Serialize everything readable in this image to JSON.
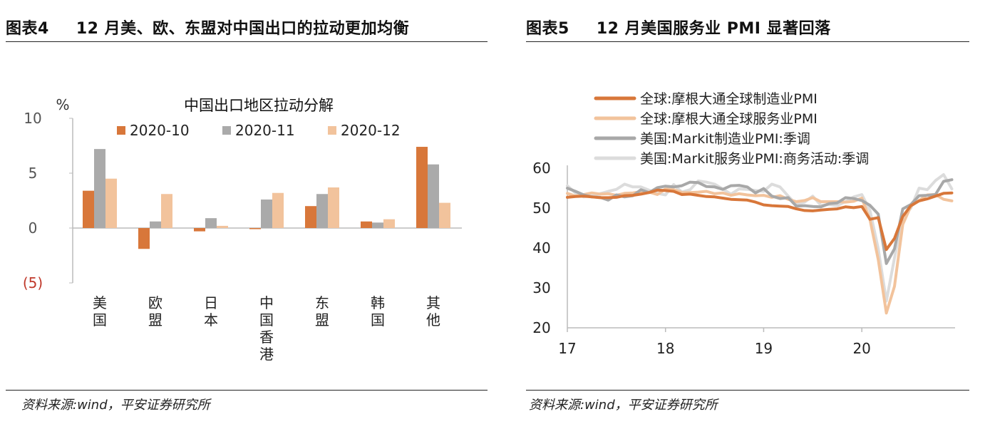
{
  "left": {
    "figure_no": "图表4",
    "title": "12 月美、欧、东盟对中国出口的拉动更加均衡",
    "source": "资料来源:wind，平安证券研究所"
  },
  "right": {
    "figure_no": "图表5",
    "title": "12 月美国服务业 PMI 显著回落",
    "source": "资料来源:wind，平安证券研究所"
  },
  "colors": {
    "dark_orange": "#D8773A",
    "gray": "#AAAAAA",
    "light_peach": "#F2C39C",
    "neg_tick_red": "#C0392B",
    "pmi_mfg_global": "#D8773A",
    "pmi_srv_global": "#F2C39C",
    "pmi_mfg_us": "#A8A8A8",
    "pmi_srv_us": "#DCDCDC"
  },
  "chart_data": [
    {
      "type": "bar",
      "title": "中国出口地区拉动分解",
      "ylabel": "%",
      "ylim": [
        -5,
        10
      ],
      "yticks": [
        "10",
        "5",
        "0",
        "(5)"
      ],
      "categories": [
        "美国",
        "欧盟",
        "日本",
        "中国香港",
        "东盟",
        "韩国",
        "其他"
      ],
      "legend_position": "top",
      "series": [
        {
          "name": "2020-10",
          "color": "#D8773A",
          "values": [
            3.4,
            -1.9,
            -0.3,
            -0.1,
            2.0,
            0.6,
            7.4
          ]
        },
        {
          "name": "2020-11",
          "color": "#AAAAAA",
          "values": [
            7.2,
            0.6,
            0.9,
            2.6,
            3.1,
            0.5,
            5.8
          ]
        },
        {
          "name": "2020-12",
          "color": "#F2C39C",
          "values": [
            4.5,
            3.1,
            0.2,
            3.2,
            3.7,
            0.8,
            2.3
          ]
        }
      ]
    },
    {
      "type": "line",
      "ylim": [
        20,
        60
      ],
      "yticks": [
        20,
        30,
        40,
        50,
        60
      ],
      "xlim": [
        2017.0,
        2020.95
      ],
      "xticks": [
        "17",
        "18",
        "19",
        "20"
      ],
      "legend_position": "top-left",
      "series": [
        {
          "name": "全球:摩根大通全球制造业PMI",
          "color": "#D8773A",
          "x": [
            2017.0,
            2017.083,
            2017.167,
            2017.25,
            2017.333,
            2017.417,
            2017.5,
            2017.583,
            2017.667,
            2017.75,
            2017.833,
            2017.917,
            2018.0,
            2018.083,
            2018.167,
            2018.25,
            2018.333,
            2018.417,
            2018.5,
            2018.583,
            2018.667,
            2018.75,
            2018.833,
            2018.917,
            2019.0,
            2019.083,
            2019.167,
            2019.25,
            2019.333,
            2019.417,
            2019.5,
            2019.583,
            2019.667,
            2019.75,
            2019.833,
            2019.917,
            2020.0,
            2020.083,
            2020.167,
            2020.25,
            2020.333,
            2020.417,
            2020.5,
            2020.583,
            2020.667,
            2020.75,
            2020.833,
            2020.917
          ],
          "values": [
            52.7,
            52.9,
            53.0,
            52.8,
            52.6,
            52.6,
            52.7,
            53.1,
            53.2,
            53.5,
            53.9,
            54.5,
            54.4,
            54.2,
            53.4,
            53.5,
            53.2,
            52.9,
            52.8,
            52.5,
            52.2,
            52.1,
            52.0,
            51.5,
            50.8,
            50.6,
            50.5,
            50.4,
            49.8,
            49.4,
            49.3,
            49.5,
            49.7,
            49.8,
            50.3,
            50.1,
            50.4,
            47.2,
            47.6,
            39.6,
            42.4,
            47.9,
            50.6,
            51.8,
            52.3,
            53.0,
            53.7,
            53.8
          ]
        },
        {
          "name": "全球:摩根大通全球服务业PMI",
          "color": "#F2C39C",
          "x": [
            2017.0,
            2017.083,
            2017.167,
            2017.25,
            2017.333,
            2017.417,
            2017.5,
            2017.583,
            2017.667,
            2017.75,
            2017.833,
            2017.917,
            2018.0,
            2018.083,
            2018.167,
            2018.25,
            2018.333,
            2018.417,
            2018.5,
            2018.583,
            2018.667,
            2018.75,
            2018.833,
            2018.917,
            2019.0,
            2019.083,
            2019.167,
            2019.25,
            2019.333,
            2019.417,
            2019.5,
            2019.583,
            2019.667,
            2019.75,
            2019.833,
            2019.917,
            2020.0,
            2020.083,
            2020.167,
            2020.25,
            2020.333,
            2020.417,
            2020.5,
            2020.583,
            2020.667,
            2020.75,
            2020.833,
            2020.917
          ],
          "values": [
            53.7,
            53.0,
            53.4,
            53.8,
            53.5,
            53.6,
            53.2,
            53.7,
            53.8,
            54.1,
            54.0,
            53.4,
            54.8,
            54.6,
            53.9,
            53.9,
            54.0,
            54.2,
            53.6,
            53.8,
            53.2,
            53.6,
            53.3,
            53.1,
            53.2,
            52.7,
            53.1,
            52.2,
            51.6,
            51.9,
            52.6,
            51.6,
            51.6,
            51.6,
            51.5,
            51.7,
            52.5,
            47.1,
            37.1,
            23.7,
            30.4,
            45.9,
            50.5,
            51.9,
            53.3,
            53.4,
            52.2,
            51.8
          ]
        },
        {
          "name": "美国:Markit制造业PMI:季调",
          "color": "#A8A8A8",
          "x": [
            2017.0,
            2017.083,
            2017.167,
            2017.25,
            2017.333,
            2017.417,
            2017.5,
            2017.583,
            2017.667,
            2017.75,
            2017.833,
            2017.917,
            2018.0,
            2018.083,
            2018.167,
            2018.25,
            2018.333,
            2018.417,
            2018.5,
            2018.583,
            2018.667,
            2018.75,
            2018.833,
            2018.917,
            2019.0,
            2019.083,
            2019.167,
            2019.25,
            2019.333,
            2019.417,
            2019.5,
            2019.583,
            2019.667,
            2019.75,
            2019.833,
            2019.917,
            2020.0,
            2020.083,
            2020.167,
            2020.25,
            2020.333,
            2020.417,
            2020.5,
            2020.583,
            2020.667,
            2020.75,
            2020.833,
            2020.917
          ],
          "values": [
            55.0,
            54.2,
            53.3,
            52.8,
            52.7,
            52.0,
            53.3,
            52.8,
            53.1,
            54.6,
            53.9,
            55.1,
            55.5,
            55.3,
            55.6,
            56.5,
            56.4,
            55.4,
            55.3,
            54.7,
            55.6,
            55.7,
            55.3,
            53.8,
            54.9,
            53.0,
            52.4,
            52.6,
            50.5,
            50.6,
            50.4,
            50.3,
            51.1,
            51.3,
            52.6,
            52.4,
            51.9,
            50.7,
            48.5,
            36.1,
            39.8,
            49.8,
            50.9,
            53.1,
            53.2,
            53.4,
            56.7,
            57.1
          ]
        },
        {
          "name": "美国:Markit服务业PMI:商务活动:季调",
          "color": "#DCDCDC",
          "x": [
            2017.0,
            2017.083,
            2017.167,
            2017.25,
            2017.333,
            2017.417,
            2017.5,
            2017.583,
            2017.667,
            2017.75,
            2017.833,
            2017.917,
            2018.0,
            2018.083,
            2018.167,
            2018.25,
            2018.333,
            2018.417,
            2018.5,
            2018.583,
            2018.667,
            2018.75,
            2018.833,
            2018.917,
            2019.0,
            2019.083,
            2019.167,
            2019.25,
            2019.333,
            2019.417,
            2019.5,
            2019.583,
            2019.667,
            2019.75,
            2019.833,
            2019.917,
            2020.0,
            2020.083,
            2020.167,
            2020.25,
            2020.333,
            2020.417,
            2020.5,
            2020.583,
            2020.667,
            2020.75,
            2020.833,
            2020.917
          ],
          "values": [
            55.6,
            53.8,
            52.8,
            53.1,
            53.6,
            54.2,
            54.7,
            56.0,
            55.3,
            55.3,
            54.5,
            53.7,
            53.3,
            55.9,
            54.0,
            54.6,
            56.8,
            56.5,
            56.0,
            54.8,
            53.5,
            54.8,
            54.7,
            54.4,
            54.2,
            56.0,
            55.3,
            53.0,
            50.9,
            51.5,
            53.0,
            50.7,
            50.9,
            50.6,
            51.6,
            52.8,
            53.4,
            49.4,
            39.8,
            26.7,
            37.5,
            47.9,
            50.0,
            55.0,
            54.6,
            56.9,
            58.4,
            54.8
          ]
        }
      ]
    }
  ]
}
